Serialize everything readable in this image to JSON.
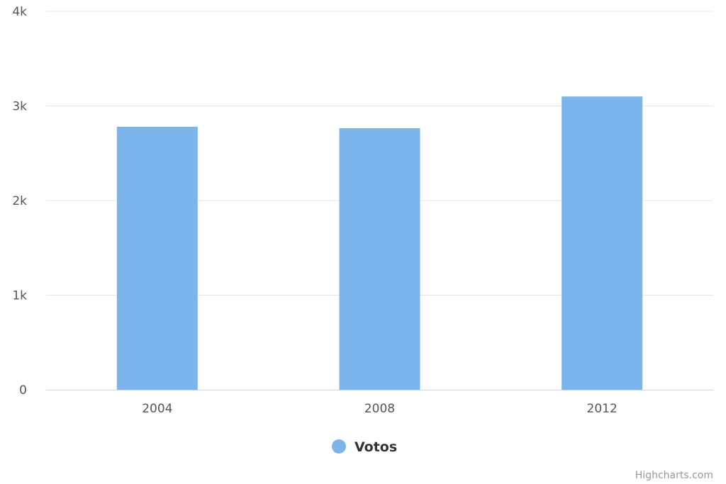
{
  "chart_data": {
    "type": "bar",
    "categories": [
      "2004",
      "2008",
      "2012"
    ],
    "series": [
      {
        "name": "Votos",
        "values": [
          2780,
          2765,
          3100
        ],
        "color": "#7cb5ec"
      }
    ],
    "y_ticks": [
      0,
      1000,
      2000,
      3000,
      4000
    ],
    "y_tick_labels": [
      "0",
      "1k",
      "2k",
      "3k",
      "4k"
    ],
    "ylim": [
      0,
      4000
    ],
    "grid": true,
    "legend_position": "bottom-center",
    "gridline_color": "#e6e6e6",
    "axis_line_color": "#ccd6eb"
  },
  "credits": "Highcharts.com"
}
